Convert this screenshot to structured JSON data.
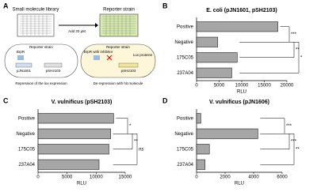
{
  "diagram": {
    "panel_label": "A",
    "library": "Small molecule library",
    "strain": "Reporter strain",
    "step": "Add 20 μM",
    "cell_left_title": "Reporter strain",
    "cell_right_title": "Reporter strain",
    "regulator": "BrpR",
    "regulator_inhibited": "BrpR with inhibitor",
    "plasmid_1": "pJN1601",
    "plasmid_2": "pSH2103",
    "plasmid_2b": "pSH2103",
    "product": "Lux proteins",
    "caption_left": "Repression of the lux expression",
    "caption_right": "De-repression with hit molecule"
  },
  "chart_data": [
    {
      "type": "hbar",
      "panel_label": "B",
      "title": "E. coli (pJN1601, pSH2103)",
      "x_label": "RLU",
      "categories": [
        "Positive",
        "Negative",
        "175C05",
        "237A04"
      ],
      "values": [
        18000,
        4700,
        9000,
        7800
      ],
      "color": "#a6a6a6",
      "xlim": [
        0,
        20000
      ],
      "xticks": [
        0,
        5000,
        10000,
        15000,
        20000
      ],
      "significance": [
        {
          "text": "***",
          "pair": [
            "Positive",
            "Negative"
          ]
        },
        {
          "text": "**",
          "pair": [
            "Negative",
            "175C05"
          ]
        },
        {
          "text": "*",
          "pair": [
            "Negative",
            "237A04"
          ]
        }
      ]
    },
    {
      "type": "hbar",
      "panel_label": "C",
      "title": "V. vulnificus (pSH2103)",
      "x_label": "RLU",
      "categories": [
        "Positive",
        "Negative",
        "175C05",
        "237A04"
      ],
      "values": [
        13000,
        12500,
        12200,
        10500
      ],
      "color": "#a6a6a6",
      "xlim": [
        0,
        15000
      ],
      "xticks": [
        0,
        5000,
        10000,
        15000
      ],
      "significance": [
        {
          "text": "*",
          "pair": [
            "Positive",
            "Negative"
          ]
        },
        {
          "text": "**",
          "pair": [
            "Negative",
            "175C05"
          ]
        },
        {
          "text": "ns",
          "pair": [
            "Negative",
            "237A04"
          ]
        }
      ]
    },
    {
      "type": "hbar",
      "panel_label": "D",
      "title": "V. vulnificus (pJN1606)",
      "x_label": "RLU",
      "categories": [
        "Positive",
        "Negative",
        "175C05",
        "237A04"
      ],
      "values": [
        300,
        4300,
        900,
        600
      ],
      "color": "#a6a6a6",
      "xlim": [
        0,
        6000
      ],
      "xticks": [
        0,
        2000,
        4000,
        6000
      ],
      "significance": [
        {
          "text": "***",
          "pair": [
            "Positive",
            "Negative"
          ]
        },
        {
          "text": "***",
          "pair": [
            "Negative",
            "175C05"
          ]
        },
        {
          "text": "**",
          "pair": [
            "Negative",
            "237A04"
          ]
        }
      ]
    }
  ]
}
